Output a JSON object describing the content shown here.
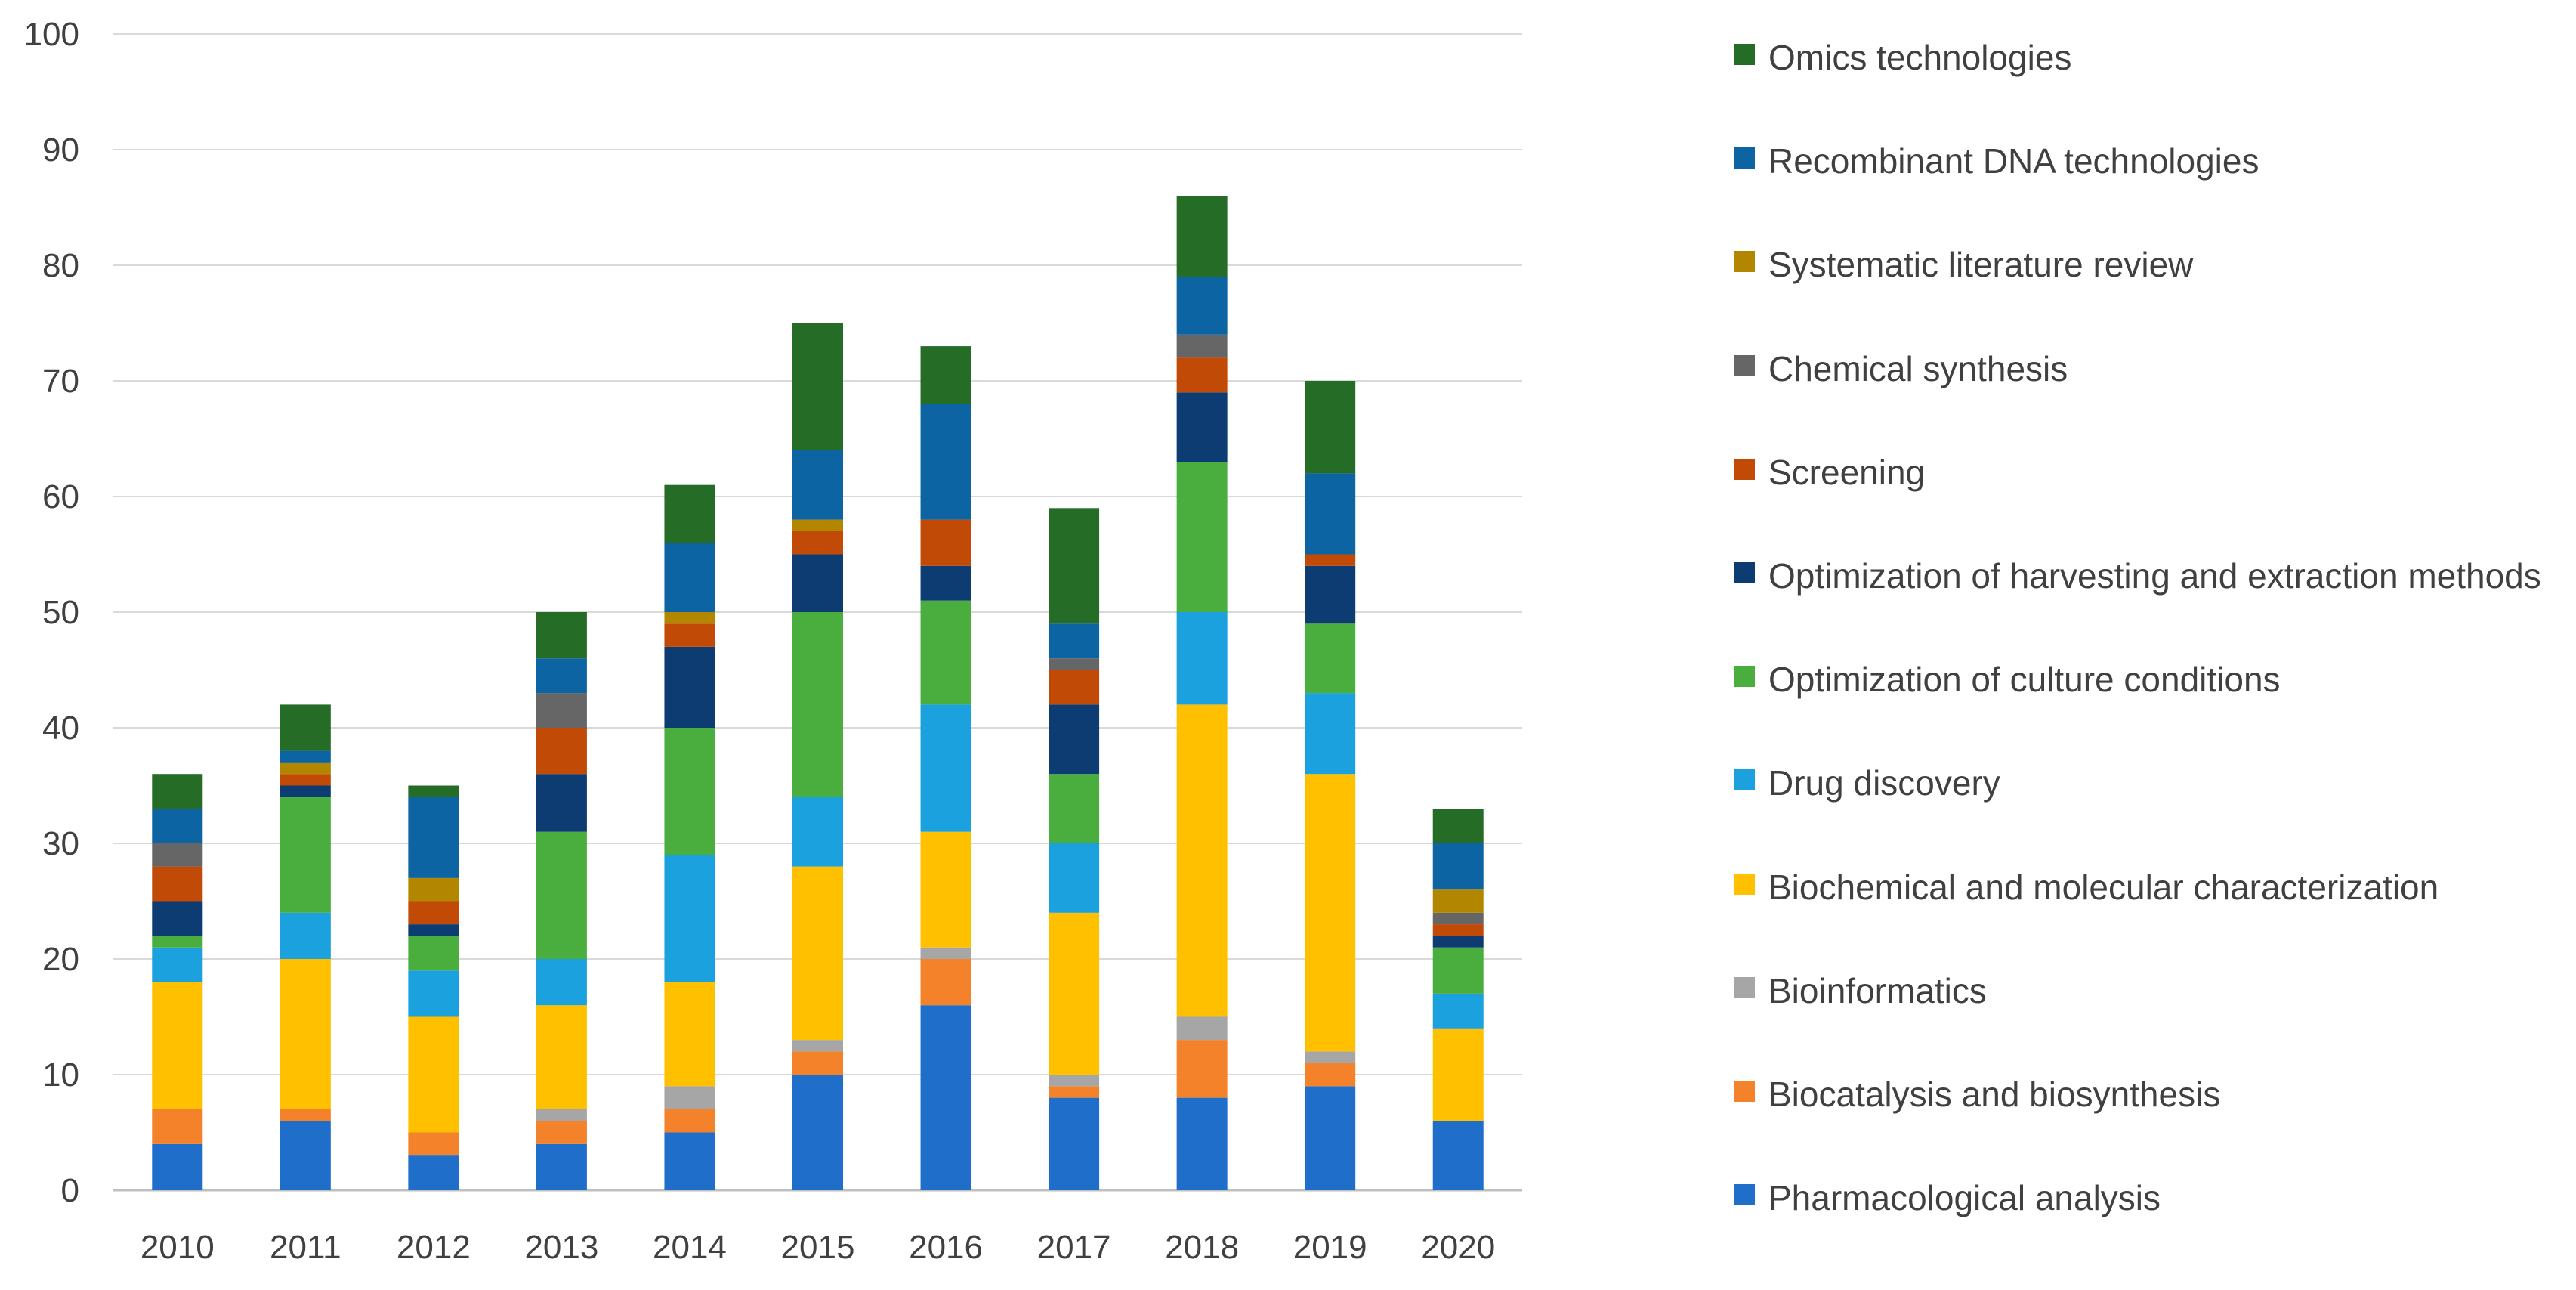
{
  "chart_data": {
    "type": "bar",
    "stacked": true,
    "title": "",
    "xlabel": "",
    "ylabel": "",
    "ylim": [
      0,
      100
    ],
    "yticks": [
      0,
      10,
      20,
      30,
      40,
      50,
      60,
      70,
      80,
      90,
      100
    ],
    "grid": true,
    "legend_position": "right",
    "categories": [
      "2010",
      "2011",
      "2012",
      "2013",
      "2014",
      "2015",
      "2016",
      "2017",
      "2018",
      "2019",
      "2020"
    ],
    "series": [
      {
        "name": "Pharmacological analysis",
        "color": "#1f6fca",
        "values": [
          4,
          6,
          3,
          4,
          5,
          10,
          16,
          8,
          8,
          9,
          6
        ]
      },
      {
        "name": "Biocatalysis and biosynthesis",
        "color": "#f4822a",
        "values": [
          3,
          1,
          2,
          2,
          2,
          2,
          4,
          1,
          5,
          2,
          0
        ]
      },
      {
        "name": "Bioinformatics",
        "color": "#a6a6a6",
        "values": [
          0,
          0,
          0,
          1,
          2,
          1,
          1,
          1,
          2,
          1,
          0
        ]
      },
      {
        "name": "Biochemical and molecular characterization",
        "color": "#ffc000",
        "values": [
          11,
          13,
          10,
          9,
          9,
          15,
          10,
          14,
          27,
          24,
          8
        ]
      },
      {
        "name": "Drug discovery",
        "color": "#1ba1dd",
        "values": [
          3,
          4,
          4,
          4,
          11,
          6,
          11,
          6,
          8,
          7,
          3
        ]
      },
      {
        "name": "Optimization of culture conditions",
        "color": "#4aae3f",
        "values": [
          1,
          10,
          3,
          11,
          11,
          16,
          9,
          6,
          13,
          6,
          4
        ]
      },
      {
        "name": "Optimization of harvesting and extraction methods",
        "color": "#0d3c73",
        "values": [
          3,
          1,
          1,
          5,
          7,
          5,
          3,
          6,
          6,
          5,
          1
        ]
      },
      {
        "name": "Screening",
        "color": "#c14a06",
        "values": [
          3,
          1,
          2,
          4,
          2,
          2,
          4,
          3,
          3,
          1,
          1
        ]
      },
      {
        "name": "Chemical synthesis",
        "color": "#666666",
        "values": [
          2,
          0,
          0,
          3,
          0,
          0,
          0,
          1,
          2,
          0,
          1
        ]
      },
      {
        "name": "Systematic literature review",
        "color": "#b38600",
        "values": [
          0,
          1,
          2,
          0,
          1,
          1,
          0,
          0,
          0,
          0,
          2
        ]
      },
      {
        "name": "Recombinant DNA technologies",
        "color": "#0d64a3",
        "values": [
          3,
          1,
          7,
          3,
          6,
          6,
          10,
          3,
          5,
          7,
          4
        ]
      },
      {
        "name": "Omics technologies",
        "color": "#256c27",
        "values": [
          3,
          4,
          1,
          4,
          5,
          11,
          5,
          10,
          7,
          8,
          3
        ]
      }
    ]
  }
}
